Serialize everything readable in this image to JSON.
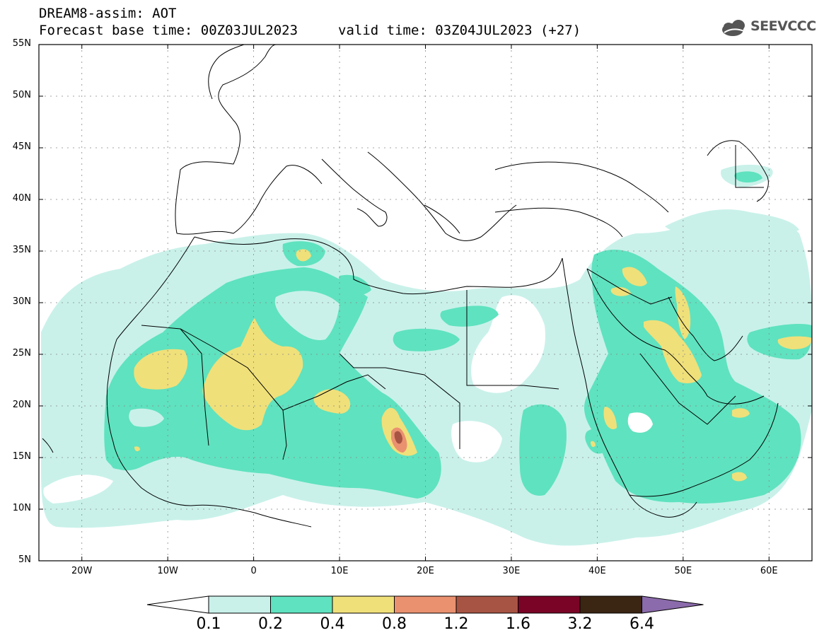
{
  "title": {
    "line1": "DREAM8-assim: AOT",
    "line2": "Forecast base time: 00Z03JUL2023",
    "valid": "valid time: 03Z04JUL2023 (+27)"
  },
  "logo": {
    "text": "SEEVCCC",
    "icon": "cloud-icon"
  },
  "map": {
    "lat_labels": [
      "55N",
      "50N",
      "45N",
      "40N",
      "35N",
      "30N",
      "25N",
      "20N",
      "15N",
      "10N",
      "5N"
    ],
    "lon_labels": [
      "20W",
      "10W",
      "0",
      "10E",
      "20E",
      "30E",
      "40E",
      "50E",
      "60E"
    ],
    "lat_range": [
      5,
      55
    ],
    "lon_range": [
      -25,
      65
    ],
    "grid": true
  },
  "colorbar": {
    "levels": [
      "0.1",
      "0.2",
      "0.4",
      "0.8",
      "1.2",
      "1.6",
      "3.2",
      "6.4"
    ],
    "colors": [
      "#c9f1ea",
      "#5fe2bf",
      "#f0e07a",
      "#ea9170",
      "#a85444",
      "#7a0426",
      "#3b2513",
      "#8b6bab"
    ],
    "below_color": "#ffffff"
  },
  "fields": {
    "c01": "#c9f1ea",
    "c02": "#5fe2bf",
    "c04": "#f0e07a",
    "c08": "#ea9170",
    "c12": "#a85444"
  }
}
